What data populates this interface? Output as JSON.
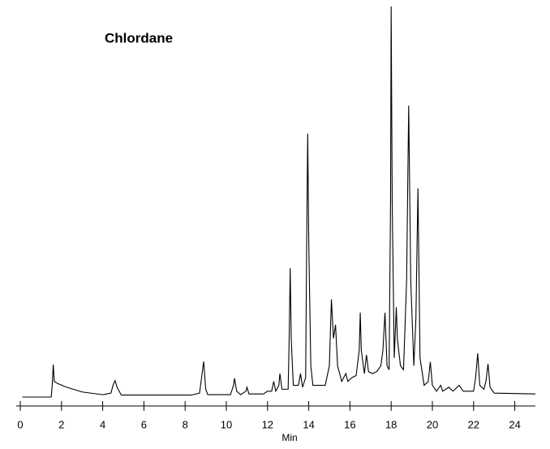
{
  "chart_data": {
    "type": "line",
    "title": "Chlordane",
    "xlabel": "Min",
    "x": [
      0.1,
      1.5,
      1.55,
      1.6,
      1.65,
      1.8,
      2.2,
      3,
      4,
      4.4,
      4.5,
      4.6,
      4.7,
      4.9,
      8.3,
      8.7,
      8.8,
      8.9,
      9.0,
      9.1,
      10.2,
      10.35,
      10.4,
      10.5,
      10.7,
      10.95,
      11.0,
      11.1,
      11.8,
      12.0,
      12.2,
      12.3,
      12.4,
      12.55,
      12.6,
      12.7,
      13.0,
      13.05,
      13.1,
      13.15,
      13.25,
      13.5,
      13.6,
      13.7,
      13.85,
      13.9,
      13.95,
      14.0,
      14.1,
      14.2,
      14.8,
      15.0,
      15.1,
      15.2,
      15.3,
      15.4,
      15.6,
      15.8,
      15.9,
      16.1,
      16.3,
      16.45,
      16.5,
      16.55,
      16.7,
      16.8,
      16.9,
      17.1,
      17.3,
      17.5,
      17.6,
      17.7,
      17.8,
      17.9,
      17.97,
      18.0,
      18.05,
      18.15,
      18.25,
      18.3,
      18.45,
      18.6,
      18.75,
      18.85,
      18.95,
      19.1,
      19.2,
      19.3,
      19.4,
      19.6,
      19.8,
      19.9,
      20.0,
      20.2,
      20.4,
      20.5,
      20.8,
      21.0,
      21.3,
      21.5,
      22.0,
      22.1,
      22.2,
      22.3,
      22.5,
      22.6,
      22.7,
      22.8,
      23.0,
      25.0
    ],
    "series": [
      {
        "color": "#000000",
        "values": [
          0,
          0,
          3,
          8.3,
          4,
          3.5,
          2.6,
          1.3,
          0.6,
          1,
          3,
          4.2,
          2.5,
          0.5,
          0.5,
          1,
          5,
          9.1,
          2,
          0.6,
          0.6,
          3,
          4.8,
          1.5,
          0.6,
          1.5,
          2.5,
          0.8,
          0.8,
          1.5,
          1.5,
          4,
          1.5,
          3,
          6,
          2,
          2,
          15,
          33,
          15,
          3,
          3,
          6,
          2.5,
          5,
          40,
          67.4,
          40,
          8,
          3,
          3,
          8,
          25,
          15,
          18.5,
          8,
          4,
          6,
          4,
          5,
          5.5,
          12,
          21.6,
          12,
          6,
          10.8,
          6.5,
          6,
          6.5,
          8,
          12,
          21.6,
          8,
          7,
          50,
          100,
          50,
          10,
          23,
          15,
          8,
          7,
          30,
          74.6,
          30,
          8,
          20,
          53.4,
          10,
          3,
          4,
          9,
          3,
          1.5,
          3,
          1.5,
          2.5,
          1.5,
          3,
          1.5,
          1.5,
          5,
          11.2,
          3,
          2,
          4,
          8.5,
          2.5,
          1,
          0.8
        ]
      }
    ],
    "xlim": [
      0,
      25
    ],
    "ylim": [
      0,
      100
    ],
    "xticks": [
      0,
      2,
      4,
      6,
      8,
      10,
      12,
      14,
      16,
      18,
      20,
      22,
      24
    ]
  }
}
